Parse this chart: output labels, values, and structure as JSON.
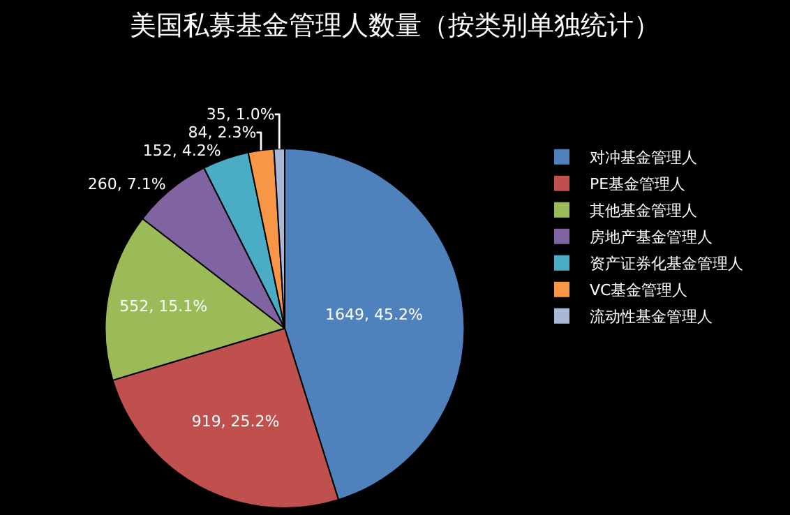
{
  "chart_data": {
    "type": "pie",
    "title": "美国私募基金管理人数量（按类别单独统计）",
    "categories": [
      "对冲基金管理人",
      "PE基金管理人",
      "其他基金管理人",
      "房地产基金管理人",
      "资产证券化基金管理人",
      "VC基金管理人",
      "流动性基金管理人"
    ],
    "values": [
      1649,
      919,
      552,
      260,
      152,
      84,
      35
    ],
    "value_labels": [
      "1649, 45.2%",
      "919, 25.2%",
      "552, 15.1%",
      "260, 7.1%",
      "152, 4.2%",
      "84, 2.3%",
      "35, 1.0%"
    ],
    "colors": [
      "#4f81bd",
      "#c0504d",
      "#9bbb59",
      "#8064a2",
      "#4bacc6",
      "#f79646",
      "#a9b8d4"
    ],
    "legend": "right"
  }
}
